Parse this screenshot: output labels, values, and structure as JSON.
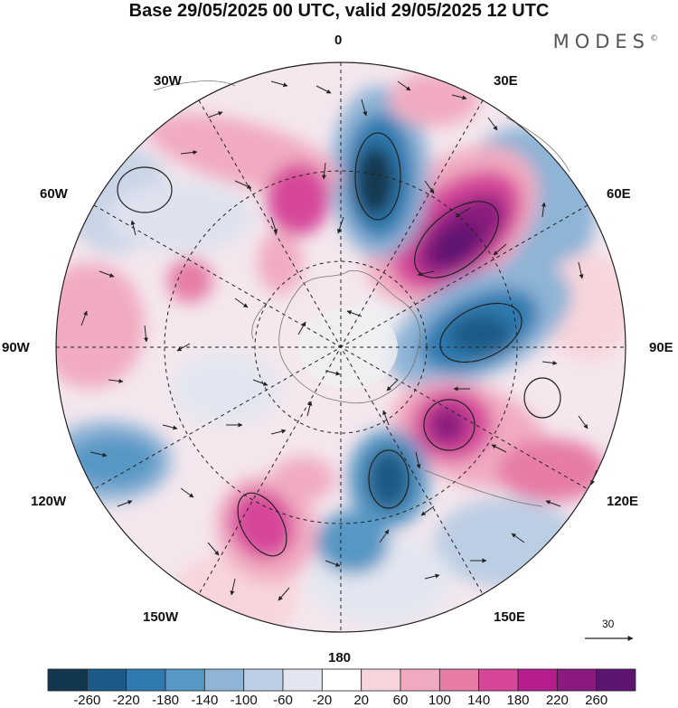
{
  "title": "Base 29/05/2025 00 UTC, valid 29/05/2025 12 UTC",
  "brand": "MODES",
  "brand_mark": "©",
  "longitude_labels": {
    "n": "0",
    "e30": "30E",
    "e60": "60E",
    "e90": "90E",
    "e120": "120E",
    "e150": "150E",
    "s": "180",
    "w150": "150W",
    "w120": "120W",
    "w90": "90W",
    "w60": "60W",
    "w30": "30W"
  },
  "reference_vector": {
    "label": "30"
  },
  "colorbar": {
    "ticks": [
      "-260",
      "-220",
      "-180",
      "-140",
      "-100",
      "-60",
      "-20",
      "20",
      "60",
      "100",
      "140",
      "180",
      "220",
      "260"
    ],
    "colors": [
      "#12384f",
      "#1b5a86",
      "#2f7ab0",
      "#5797c4",
      "#8eb4d6",
      "#bccee3",
      "#e3e6f0",
      "#ffffff",
      "#f8d5dc",
      "#f1abc1",
      "#e67ba6",
      "#d6479a",
      "#b51e8c",
      "#8a1a7e",
      "#5b1570"
    ]
  },
  "anomaly_features": [
    {
      "sign": "positive",
      "level": 260,
      "region": "between 30E and 60E"
    },
    {
      "sign": "negative",
      "level": -220,
      "region": "near 90E"
    },
    {
      "sign": "negative",
      "level": -220,
      "region": "near 10E"
    },
    {
      "sign": "positive",
      "level": 220,
      "region": "near 110E"
    },
    {
      "sign": "negative",
      "level": -180,
      "region": "near 165E"
    },
    {
      "sign": "positive",
      "level": 180,
      "region": "near 150W"
    },
    {
      "sign": "negative",
      "level": -140,
      "region": "near 120W"
    }
  ]
}
